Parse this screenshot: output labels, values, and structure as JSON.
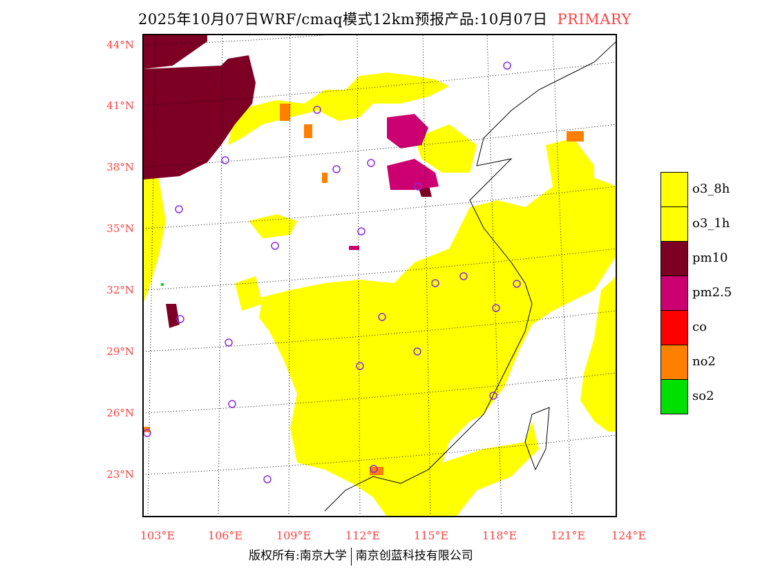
{
  "title": {
    "main": "2025年10月07日WRF/cmaq模式12km预报产品:10月07日",
    "tag": "PRIMARY",
    "tag_color": "#ff4040"
  },
  "lat_labels": [
    "44°N",
    "41°N",
    "38°N",
    "35°N",
    "32°N",
    "29°N",
    "26°N",
    "23°N"
  ],
  "lon_labels": [
    "103°E",
    "106°E",
    "109°E",
    "112°E",
    "115°E",
    "118°E",
    "121°E",
    "124°E"
  ],
  "legend": [
    {
      "label": "o3_8h",
      "color": "#ffff00"
    },
    {
      "label": "o3_1h",
      "color": "#ffff00"
    },
    {
      "label": "pm10",
      "color": "#7d0024"
    },
    {
      "label": "pm2.5",
      "color": "#cc0070"
    },
    {
      "label": "co",
      "color": "#ff0000"
    },
    {
      "label": "no2",
      "color": "#ff7f00"
    },
    {
      "label": "so2",
      "color": "#00e000"
    }
  ],
  "footer": {
    "left": "版权所有:南京大学",
    "right": "南京创蓝科技有限公司"
  }
}
